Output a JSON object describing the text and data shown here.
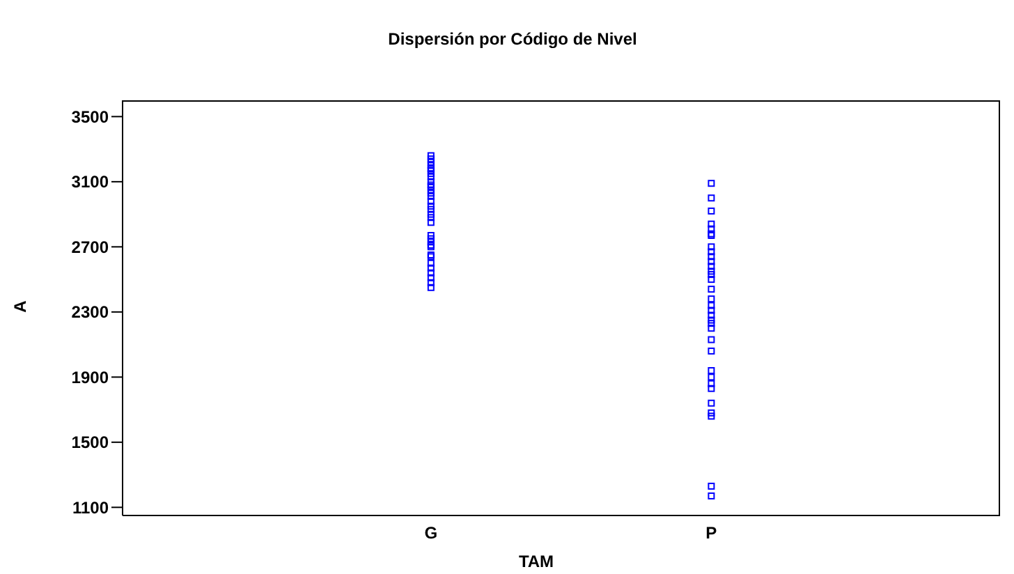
{
  "chart_data": {
    "type": "scatter",
    "title": "Dispersión por Código de Nivel",
    "xlabel": "TAM",
    "ylabel": "A",
    "categories": [
      "G",
      "P"
    ],
    "ylim": [
      1050,
      3600
    ],
    "yticks": [
      1100,
      1500,
      1900,
      2300,
      2700,
      3100,
      3500
    ],
    "marker": "square",
    "series": [
      {
        "color": "#0000ff",
        "x": [
          "G",
          "G",
          "G",
          "G",
          "G",
          "G",
          "G",
          "G",
          "G",
          "G",
          "G",
          "G",
          "G",
          "G",
          "G",
          "G",
          "G",
          "G",
          "G",
          "G",
          "G",
          "G",
          "G",
          "G",
          "G",
          "G",
          "G",
          "G",
          "G",
          "G",
          "G",
          "G",
          "G"
        ],
        "values": [
          3260,
          3240,
          3220,
          3200,
          3180,
          3170,
          3150,
          3130,
          3100,
          3080,
          3070,
          3050,
          3030,
          3010,
          2980,
          2950,
          2930,
          2900,
          2880,
          2850,
          2770,
          2750,
          2730,
          2710,
          2700,
          2650,
          2640,
          2600,
          2570,
          2540,
          2510,
          2480,
          2450
        ]
      },
      {
        "color": "#0000ff",
        "x": [
          "P",
          "P",
          "P",
          "P",
          "P",
          "P",
          "P",
          "P",
          "P",
          "P",
          "P",
          "P",
          "P",
          "P",
          "P",
          "P",
          "P",
          "P",
          "P",
          "P",
          "P",
          "P",
          "P",
          "P",
          "P",
          "P",
          "P",
          "P",
          "P",
          "P",
          "P",
          "P",
          "P",
          "P"
        ],
        "values": [
          3090,
          3000,
          2920,
          2840,
          2810,
          2780,
          2770,
          2700,
          2670,
          2640,
          2610,
          2580,
          2550,
          2530,
          2500,
          2440,
          2380,
          2340,
          2310,
          2280,
          2250,
          2230,
          2200,
          2130,
          2060,
          1940,
          1900,
          1860,
          1830,
          1740,
          1680,
          1660,
          1230,
          1170
        ]
      }
    ]
  }
}
